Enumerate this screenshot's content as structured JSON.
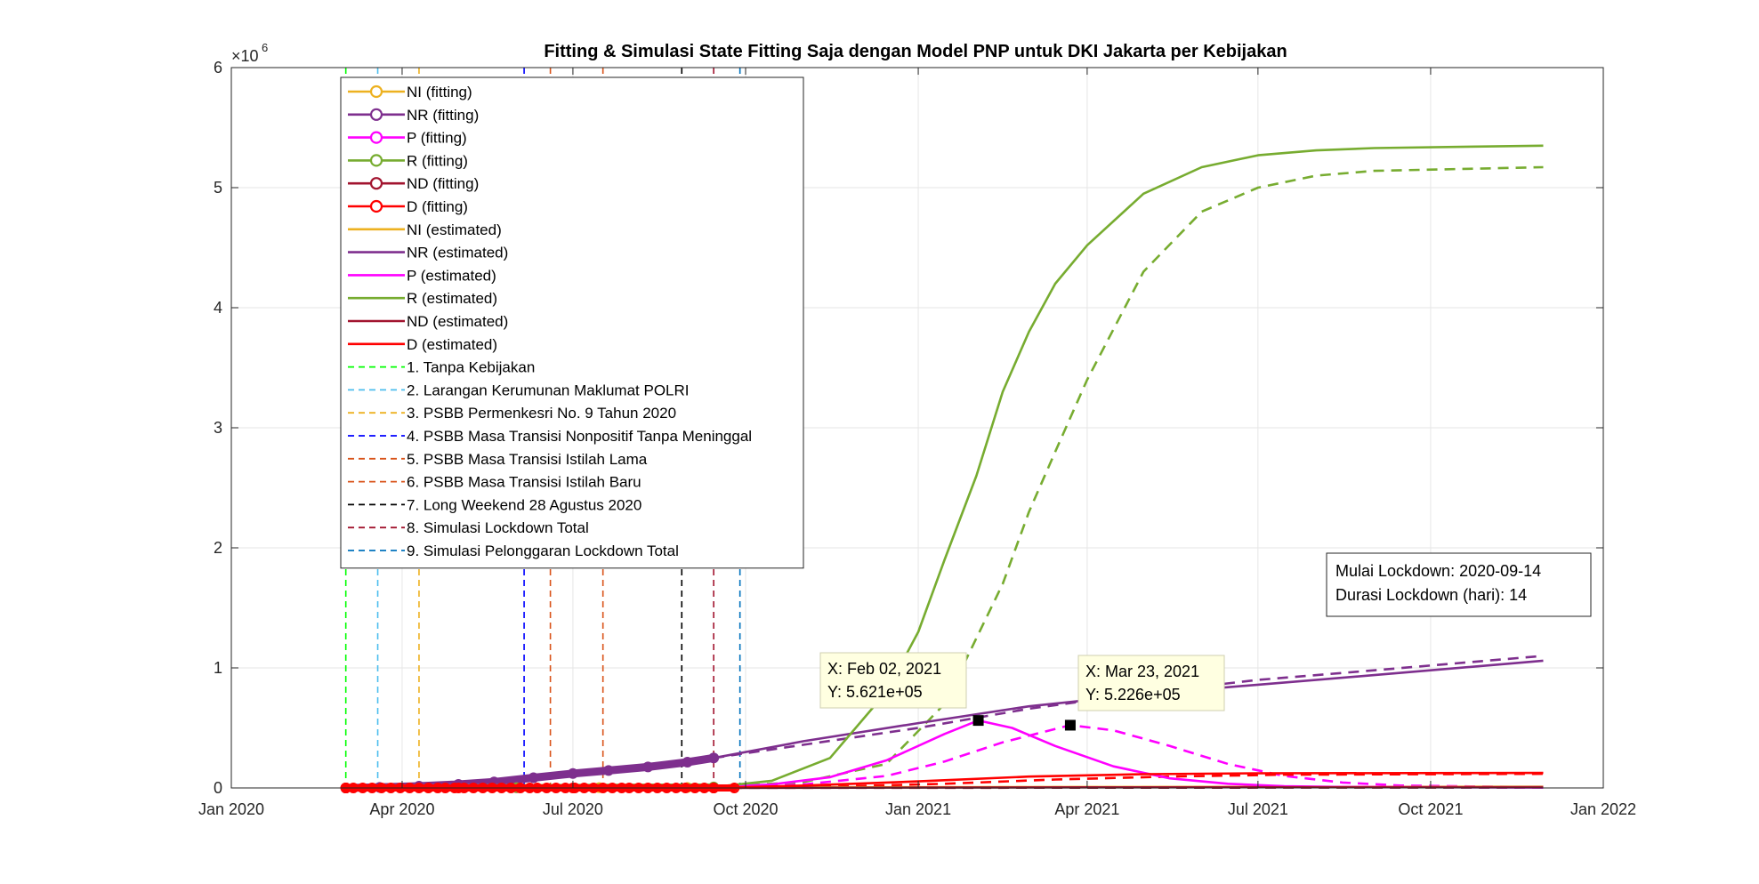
{
  "chart_data": {
    "type": "line",
    "title": "Fitting & Simulasi State Fitting Saja dengan Model PNP untuk DKI Jakarta per Kebijakan",
    "xlabel": "",
    "ylabel": "",
    "y_exponent_label": "×10",
    "y_exponent_power": "6",
    "grid": true,
    "legend_position": "top-left",
    "xlim": [
      "2020-01-01",
      "2022-01-01"
    ],
    "ylim": [
      0,
      6000000
    ],
    "x_ticks": [
      {
        "date": "2020-01-01",
        "label": "Jan 2020"
      },
      {
        "date": "2020-04-01",
        "label": "Apr 2020"
      },
      {
        "date": "2020-07-01",
        "label": "Jul 2020"
      },
      {
        "date": "2020-10-01",
        "label": "Oct 2020"
      },
      {
        "date": "2021-01-01",
        "label": "Jan 2021"
      },
      {
        "date": "2021-04-01",
        "label": "Apr 2021"
      },
      {
        "date": "2021-07-01",
        "label": "Jul 2021"
      },
      {
        "date": "2021-10-01",
        "label": "Oct 2021"
      },
      {
        "date": "2022-01-01",
        "label": "Jan 2022"
      }
    ],
    "y_ticks": [
      {
        "value": 0,
        "label": "0"
      },
      {
        "value": 1000000,
        "label": "1"
      },
      {
        "value": 2000000,
        "label": "2"
      },
      {
        "value": 3000000,
        "label": "3"
      },
      {
        "value": 4000000,
        "label": "4"
      },
      {
        "value": 5000000,
        "label": "5"
      },
      {
        "value": 6000000,
        "label": "6"
      }
    ],
    "series": [
      {
        "name": "NI (fitting)",
        "color": "#EDB120",
        "style": "marker",
        "x": [
          "2020-03-02",
          "2020-04-15",
          "2020-06-01",
          "2020-07-15",
          "2020-08-31",
          "2020-09-14"
        ],
        "y": [
          0,
          500,
          1200,
          2500,
          4000,
          4500
        ]
      },
      {
        "name": "NR (fitting)",
        "color": "#7E2F8E",
        "style": "marker",
        "x": [
          "2020-03-02",
          "2020-03-20",
          "2020-04-10",
          "2020-05-01",
          "2020-05-20",
          "2020-06-10",
          "2020-07-01",
          "2020-07-20",
          "2020-08-10",
          "2020-08-31",
          "2020-09-14"
        ],
        "y": [
          0,
          5000,
          15000,
          30000,
          50000,
          85000,
          120000,
          145000,
          175000,
          215000,
          250000
        ]
      },
      {
        "name": "P (fitting)",
        "color": "#FF00FF",
        "style": "marker",
        "x": [
          "2020-03-02",
          "2020-06-01",
          "2020-09-14"
        ],
        "y": [
          0,
          2000,
          5000
        ]
      },
      {
        "name": "R (fitting)",
        "color": "#77AC30",
        "style": "marker",
        "x": [
          "2020-03-02",
          "2020-06-01",
          "2020-09-14"
        ],
        "y": [
          0,
          3000,
          8000
        ]
      },
      {
        "name": "ND (fitting)",
        "color": "#A2142F",
        "style": "marker",
        "x": [
          "2020-03-02",
          "2020-09-14"
        ],
        "y": [
          0,
          1000
        ]
      },
      {
        "name": "D (fitting)",
        "color": "#FF0000",
        "style": "marker",
        "x": [
          "2020-03-02",
          "2020-05-01",
          "2020-07-01",
          "2020-09-14",
          "2020-09-25"
        ],
        "y": [
          0,
          0,
          0,
          0,
          0
        ]
      },
      {
        "name": "NI (estimated)",
        "color": "#EDB120",
        "style": "solid",
        "x": [
          "2020-09-14",
          "2021-01-01",
          "2021-04-01",
          "2021-07-01",
          "2021-11-30"
        ],
        "y": [
          4500,
          6000,
          8000,
          9000,
          9500
        ]
      },
      {
        "name": "NR (estimated)",
        "color": "#7E2F8E",
        "style": "solid",
        "x": [
          "2020-09-14",
          "2020-11-01",
          "2021-01-01",
          "2021-03-01",
          "2021-05-01",
          "2021-07-01",
          "2021-09-01",
          "2021-11-30"
        ],
        "y": [
          250000,
          390000,
          540000,
          680000,
          780000,
          860000,
          940000,
          1060000
        ]
      },
      {
        "name": "P (estimated)",
        "color": "#FF00FF",
        "style": "solid",
        "x": [
          "2020-09-14",
          "2020-10-15",
          "2020-11-15",
          "2020-12-15",
          "2021-01-15",
          "2021-02-02",
          "2021-02-20",
          "2021-03-15",
          "2021-04-15",
          "2021-05-15",
          "2021-06-15",
          "2021-07-15",
          "2021-08-15",
          "2021-11-30"
        ],
        "y": [
          5000,
          30000,
          90000,
          230000,
          450000,
          562100,
          500000,
          350000,
          180000,
          80000,
          35000,
          15000,
          8000,
          3000
        ]
      },
      {
        "name": "R (estimated)",
        "color": "#77AC30",
        "style": "solid",
        "x": [
          "2020-09-14",
          "2020-10-15",
          "2020-11-15",
          "2020-12-15",
          "2021-01-01",
          "2021-01-15",
          "2021-02-01",
          "2021-02-15",
          "2021-03-01",
          "2021-03-15",
          "2021-04-01",
          "2021-05-01",
          "2021-06-01",
          "2021-07-01",
          "2021-08-01",
          "2021-09-01",
          "2021-11-30"
        ],
        "y": [
          8000,
          60000,
          250000,
          800000,
          1300000,
          1900000,
          2600000,
          3300000,
          3800000,
          4200000,
          4520000,
          4950000,
          5170000,
          5270000,
          5310000,
          5330000,
          5350000
        ]
      },
      {
        "name": "ND (estimated)",
        "color": "#A2142F",
        "style": "solid",
        "x": [
          "2020-09-14",
          "2021-01-01",
          "2021-04-01",
          "2021-07-01",
          "2021-11-30"
        ],
        "y": [
          1000,
          3000,
          5000,
          6000,
          6500
        ]
      },
      {
        "name": "D (estimated)",
        "color": "#FF0000",
        "style": "solid",
        "x": [
          "2020-09-14",
          "2020-11-01",
          "2021-01-01",
          "2021-03-01",
          "2021-05-01",
          "2021-07-01",
          "2021-11-30"
        ],
        "y": [
          0,
          20000,
          55000,
          95000,
          115000,
          122000,
          125000
        ]
      },
      {
        "name": "",
        "color": "#7E2F8E",
        "style": "dashed",
        "x": [
          "2020-09-14",
          "2020-11-01",
          "2021-01-01",
          "2021-03-01",
          "2021-05-01",
          "2021-07-01",
          "2021-09-01",
          "2021-11-30"
        ],
        "y": [
          250000,
          360000,
          500000,
          660000,
          790000,
          900000,
          980000,
          1100000
        ]
      },
      {
        "name": "",
        "color": "#FF00FF",
        "style": "dashed",
        "x": [
          "2020-09-14",
          "2020-11-01",
          "2020-12-15",
          "2021-01-15",
          "2021-02-15",
          "2021-03-23",
          "2021-04-15",
          "2021-05-15",
          "2021-06-15",
          "2021-07-15",
          "2021-08-15",
          "2021-09-15",
          "2021-11-30"
        ],
        "y": [
          5000,
          30000,
          100000,
          220000,
          380000,
          522600,
          480000,
          350000,
          200000,
          100000,
          45000,
          20000,
          5000
        ]
      },
      {
        "name": "",
        "color": "#77AC30",
        "style": "dashed",
        "x": [
          "2020-09-14",
          "2020-11-01",
          "2020-12-15",
          "2021-01-15",
          "2021-02-15",
          "2021-03-01",
          "2021-03-15",
          "2021-04-01",
          "2021-05-01",
          "2021-06-01",
          "2021-07-01",
          "2021-08-01",
          "2021-09-01",
          "2021-11-30"
        ],
        "y": [
          8000,
          50000,
          200000,
          700000,
          1700000,
          2300000,
          2800000,
          3400000,
          4300000,
          4800000,
          5000000,
          5100000,
          5140000,
          5170000
        ]
      },
      {
        "name": "",
        "color": "#FF0000",
        "style": "dashed",
        "x": [
          "2020-09-14",
          "2020-11-15",
          "2021-01-15",
          "2021-03-15",
          "2021-05-15",
          "2021-07-15",
          "2021-11-30"
        ],
        "y": [
          0,
          10000,
          35000,
          70000,
          95000,
          110000,
          118000
        ]
      },
      {
        "name": "",
        "color": "#A2142F",
        "style": "dashed",
        "x": [
          "2020-09-14",
          "2021-11-30"
        ],
        "y": [
          1000,
          4000
        ]
      },
      {
        "name": "",
        "color": "#EDB120",
        "style": "dashed",
        "x": [
          "2020-09-14",
          "2021-11-30"
        ],
        "y": [
          4500,
          8000
        ]
      }
    ],
    "policy_lines": [
      {
        "label": "1. Tanpa Kebijakan",
        "date": "2020-03-02",
        "color": "#00FF00"
      },
      {
        "label": "2. Larangan Kerumunan Maklumat POLRI",
        "date": "2020-03-19",
        "color": "#4DBEEE"
      },
      {
        "label": "3. PSBB Permenkesri No. 9 Tahun 2020",
        "date": "2020-04-10",
        "color": "#EDB120"
      },
      {
        "label": "4. PSBB Masa Transisi Nonpositif Tanpa Meninggal",
        "date": "2020-06-05",
        "color": "#0000FF"
      },
      {
        "label": "5. PSBB Masa Transisi Istilah Lama",
        "date": "2020-06-19",
        "color": "#D95319"
      },
      {
        "label": "6. PSBB Masa Transisi Istilah Baru",
        "date": "2020-07-17",
        "color": "#D95319"
      },
      {
        "label": "7. Long Weekend 28 Agustus 2020",
        "date": "2020-08-28",
        "color": "#000000"
      },
      {
        "label": "8. Simulasi Lockdown Total",
        "date": "2020-09-14",
        "color": "#A2142F"
      },
      {
        "label": "9. Simulasi Pelonggaran Lockdown Total",
        "date": "2020-09-28",
        "color": "#0072BD"
      }
    ],
    "datatips": [
      {
        "x": "2021-02-02",
        "y": 562100,
        "line1": "X: Feb 02, 2021",
        "line2": "Y: 5.621e+05"
      },
      {
        "x": "2021-03-23",
        "y": 522600,
        "line1": "X: Mar 23, 2021",
        "line2": "Y: 5.226e+05"
      }
    ],
    "annotation": [
      "Mulai Lockdown: 2020-09-14",
      "Durasi Lockdown (hari): 14"
    ]
  },
  "legend": {
    "entries": [
      {
        "label": "NI (fitting)",
        "color": "#EDB120",
        "style": "marker"
      },
      {
        "label": "NR (fitting)",
        "color": "#7E2F8E",
        "style": "marker"
      },
      {
        "label": "P (fitting)",
        "color": "#FF00FF",
        "style": "marker"
      },
      {
        "label": "R (fitting)",
        "color": "#77AC30",
        "style": "marker"
      },
      {
        "label": "ND (fitting)",
        "color": "#A2142F",
        "style": "marker"
      },
      {
        "label": "D (fitting)",
        "color": "#FF0000",
        "style": "marker"
      },
      {
        "label": "NI (estimated)",
        "color": "#EDB120",
        "style": "solid"
      },
      {
        "label": "NR (estimated)",
        "color": "#7E2F8E",
        "style": "solid"
      },
      {
        "label": "P (estimated)",
        "color": "#FF00FF",
        "style": "solid"
      },
      {
        "label": "R (estimated)",
        "color": "#77AC30",
        "style": "solid"
      },
      {
        "label": "ND (estimated)",
        "color": "#A2142F",
        "style": "solid"
      },
      {
        "label": "D (estimated)",
        "color": "#FF0000",
        "style": "solid"
      },
      {
        "label": "1. Tanpa Kebijakan",
        "color": "#00FF00",
        "style": "dashed"
      },
      {
        "label": "2. Larangan Kerumunan Maklumat POLRI",
        "color": "#4DBEEE",
        "style": "dashed"
      },
      {
        "label": "3. PSBB Permenkesri No. 9 Tahun 2020",
        "color": "#EDB120",
        "style": "dashed"
      },
      {
        "label": "4. PSBB Masa Transisi Nonpositif Tanpa Meninggal",
        "color": "#0000FF",
        "style": "dashed"
      },
      {
        "label": "5. PSBB Masa Transisi Istilah Lama",
        "color": "#D95319",
        "style": "dashed"
      },
      {
        "label": "6. PSBB Masa Transisi Istilah Baru",
        "color": "#D95319",
        "style": "dashed"
      },
      {
        "label": "7. Long Weekend 28 Agustus 2020",
        "color": "#000000",
        "style": "dashed"
      },
      {
        "label": "8. Simulasi Lockdown Total",
        "color": "#A2142F",
        "style": "dashed"
      },
      {
        "label": "9. Simulasi Pelonggaran Lockdown Total",
        "color": "#0072BD",
        "style": "dashed"
      }
    ]
  }
}
